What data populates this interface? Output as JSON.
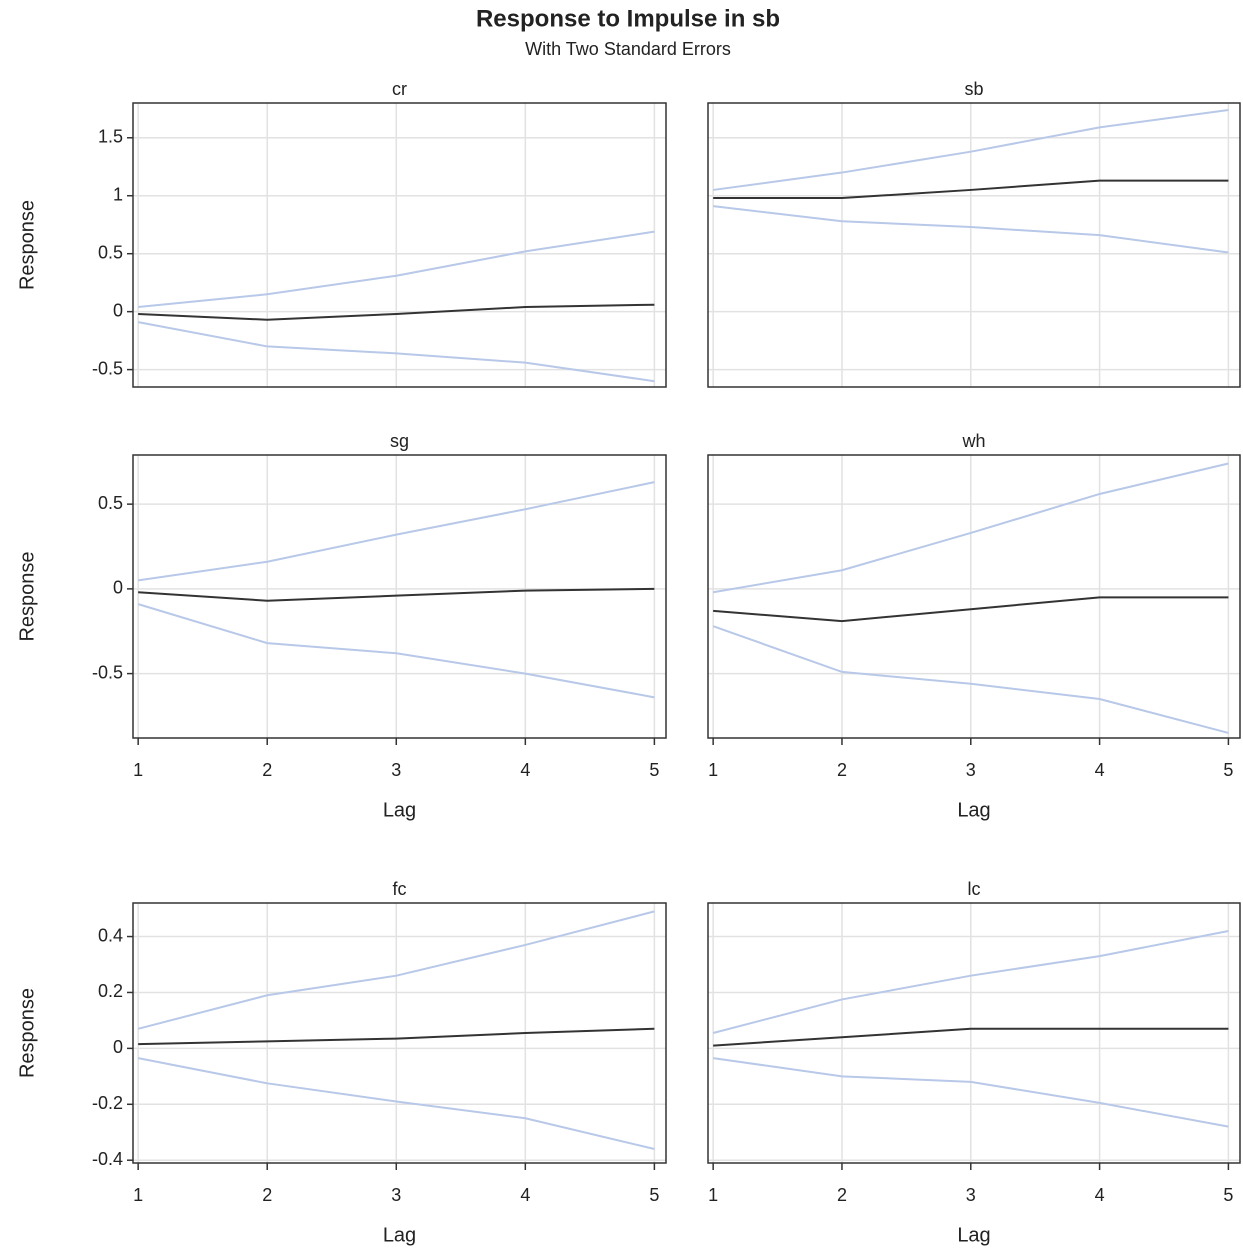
{
  "title": "Response to Impulse in sb",
  "subtitle": "With Two Standard Errors",
  "chart_data": [
    {
      "type": "line",
      "title": "cr",
      "ylabel": "Response",
      "x": [
        1,
        2,
        3,
        4,
        5
      ],
      "xlim": [
        0.96,
        5.09
      ],
      "xticks": [
        1,
        2,
        3,
        4,
        5
      ],
      "ylim": [
        -0.65,
        1.8
      ],
      "yticks": [
        -0.5,
        0.0,
        0.5,
        1.0,
        1.5
      ],
      "grid": true,
      "series": [
        {
          "color": "#b8c8e8",
          "values": [
            0.04,
            0.15,
            0.31,
            0.52,
            0.69
          ]
        },
        {
          "color": "#333333",
          "values": [
            -0.02,
            -0.07,
            -0.02,
            0.04,
            0.06
          ]
        },
        {
          "color": "#b8c8e8",
          "values": [
            -0.09,
            -0.3,
            -0.36,
            -0.44,
            -0.6
          ]
        }
      ]
    },
    {
      "type": "line",
      "title": "sb",
      "x": [
        1,
        2,
        3,
        4,
        5
      ],
      "xlim": [
        0.96,
        5.09
      ],
      "xticks": [
        1,
        2,
        3,
        4,
        5
      ],
      "ylim": [
        -0.65,
        1.8
      ],
      "yticks": [
        -0.5,
        0.0,
        0.5,
        1.0,
        1.5
      ],
      "grid": true,
      "series": [
        {
          "color": "#b8c8e8",
          "values": [
            1.05,
            1.2,
            1.38,
            1.59,
            1.74
          ]
        },
        {
          "color": "#333333",
          "values": [
            0.98,
            0.98,
            1.05,
            1.13,
            1.13
          ]
        },
        {
          "color": "#b8c8e8",
          "values": [
            0.91,
            0.78,
            0.73,
            0.66,
            0.51
          ]
        }
      ]
    },
    {
      "type": "line",
      "title": "sg",
      "ylabel": "Response",
      "xlabel": "Lag",
      "x": [
        1,
        2,
        3,
        4,
        5
      ],
      "xlim": [
        0.96,
        5.09
      ],
      "xticks": [
        1,
        2,
        3,
        4,
        5
      ],
      "ylim": [
        -0.88,
        0.79
      ],
      "yticks": [
        -0.5,
        0.0,
        0.5
      ],
      "grid": true,
      "series": [
        {
          "color": "#b8c8e8",
          "values": [
            0.05,
            0.16,
            0.32,
            0.47,
            0.63
          ]
        },
        {
          "color": "#333333",
          "values": [
            -0.02,
            -0.07,
            -0.04,
            -0.01,
            0.0
          ]
        },
        {
          "color": "#b8c8e8",
          "values": [
            -0.09,
            -0.32,
            -0.38,
            -0.5,
            -0.64
          ]
        }
      ]
    },
    {
      "type": "line",
      "title": "wh",
      "xlabel": "Lag",
      "x": [
        1,
        2,
        3,
        4,
        5
      ],
      "xlim": [
        0.96,
        5.09
      ],
      "xticks": [
        1,
        2,
        3,
        4,
        5
      ],
      "ylim": [
        -0.88,
        0.79
      ],
      "yticks": [
        -0.5,
        0.0,
        0.5
      ],
      "grid": true,
      "series": [
        {
          "color": "#b8c8e8",
          "values": [
            -0.02,
            0.11,
            0.33,
            0.56,
            0.74
          ]
        },
        {
          "color": "#333333",
          "values": [
            -0.13,
            -0.19,
            -0.12,
            -0.05,
            -0.05
          ]
        },
        {
          "color": "#b8c8e8",
          "values": [
            -0.22,
            -0.49,
            -0.56,
            -0.65,
            -0.85
          ]
        }
      ]
    },
    {
      "type": "line",
      "title": "fc",
      "ylabel": "Response",
      "xlabel": "Lag",
      "x": [
        1,
        2,
        3,
        4,
        5
      ],
      "xlim": [
        0.96,
        5.09
      ],
      "xticks": [
        1,
        2,
        3,
        4,
        5
      ],
      "ylim": [
        -0.41,
        0.52
      ],
      "yticks": [
        -0.4,
        -0.2,
        0.0,
        0.2,
        0.4
      ],
      "grid": true,
      "series": [
        {
          "color": "#b8c8e8",
          "values": [
            0.07,
            0.19,
            0.26,
            0.37,
            0.49
          ]
        },
        {
          "color": "#333333",
          "values": [
            0.015,
            0.025,
            0.035,
            0.055,
            0.07
          ]
        },
        {
          "color": "#b8c8e8",
          "values": [
            -0.035,
            -0.125,
            -0.19,
            -0.25,
            -0.36
          ]
        }
      ]
    },
    {
      "type": "line",
      "title": "lc",
      "xlabel": "Lag",
      "x": [
        1,
        2,
        3,
        4,
        5
      ],
      "xlim": [
        0.96,
        5.09
      ],
      "xticks": [
        1,
        2,
        3,
        4,
        5
      ],
      "ylim": [
        -0.41,
        0.52
      ],
      "yticks": [
        -0.4,
        -0.2,
        0.0,
        0.2,
        0.4
      ],
      "grid": true,
      "series": [
        {
          "color": "#b8c8e8",
          "values": [
            0.055,
            0.175,
            0.26,
            0.33,
            0.42
          ]
        },
        {
          "color": "#333333",
          "values": [
            0.01,
            0.04,
            0.07,
            0.07,
            0.07
          ]
        },
        {
          "color": "#b8c8e8",
          "values": [
            -0.035,
            -0.1,
            -0.12,
            -0.195,
            -0.28
          ]
        }
      ]
    }
  ]
}
